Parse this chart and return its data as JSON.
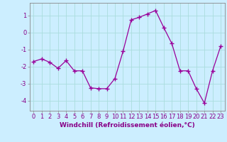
{
  "x": [
    0,
    1,
    2,
    3,
    4,
    5,
    6,
    7,
    8,
    9,
    10,
    11,
    12,
    13,
    14,
    15,
    16,
    17,
    18,
    19,
    20,
    21,
    22,
    23
  ],
  "y": [
    -1.7,
    -1.55,
    -1.75,
    -2.1,
    -1.65,
    -2.25,
    -2.25,
    -3.25,
    -3.3,
    -3.3,
    -2.7,
    -1.1,
    0.75,
    0.9,
    1.1,
    1.3,
    0.3,
    -0.65,
    -2.25,
    -2.25,
    -3.3,
    -4.15,
    -2.25,
    -0.8
  ],
  "line_color": "#990099",
  "marker": "+",
  "marker_size": 4,
  "marker_linewidth": 1.0,
  "bg_color": "#cceeff",
  "grid_color": "#aadddd",
  "xlabel": "Windchill (Refroidissement éolien,°C)",
  "xlim": [
    -0.5,
    23.5
  ],
  "ylim": [
    -4.6,
    1.75
  ],
  "yticks": [
    1,
    0,
    -1,
    -2,
    -3,
    -4
  ],
  "xticks": [
    0,
    1,
    2,
    3,
    4,
    5,
    6,
    7,
    8,
    9,
    10,
    11,
    12,
    13,
    14,
    15,
    16,
    17,
    18,
    19,
    20,
    21,
    22,
    23
  ],
  "xlabel_fontsize": 6.5,
  "tick_fontsize": 6,
  "label_color": "#880088",
  "spine_color": "#888888",
  "linewidth": 0.9
}
